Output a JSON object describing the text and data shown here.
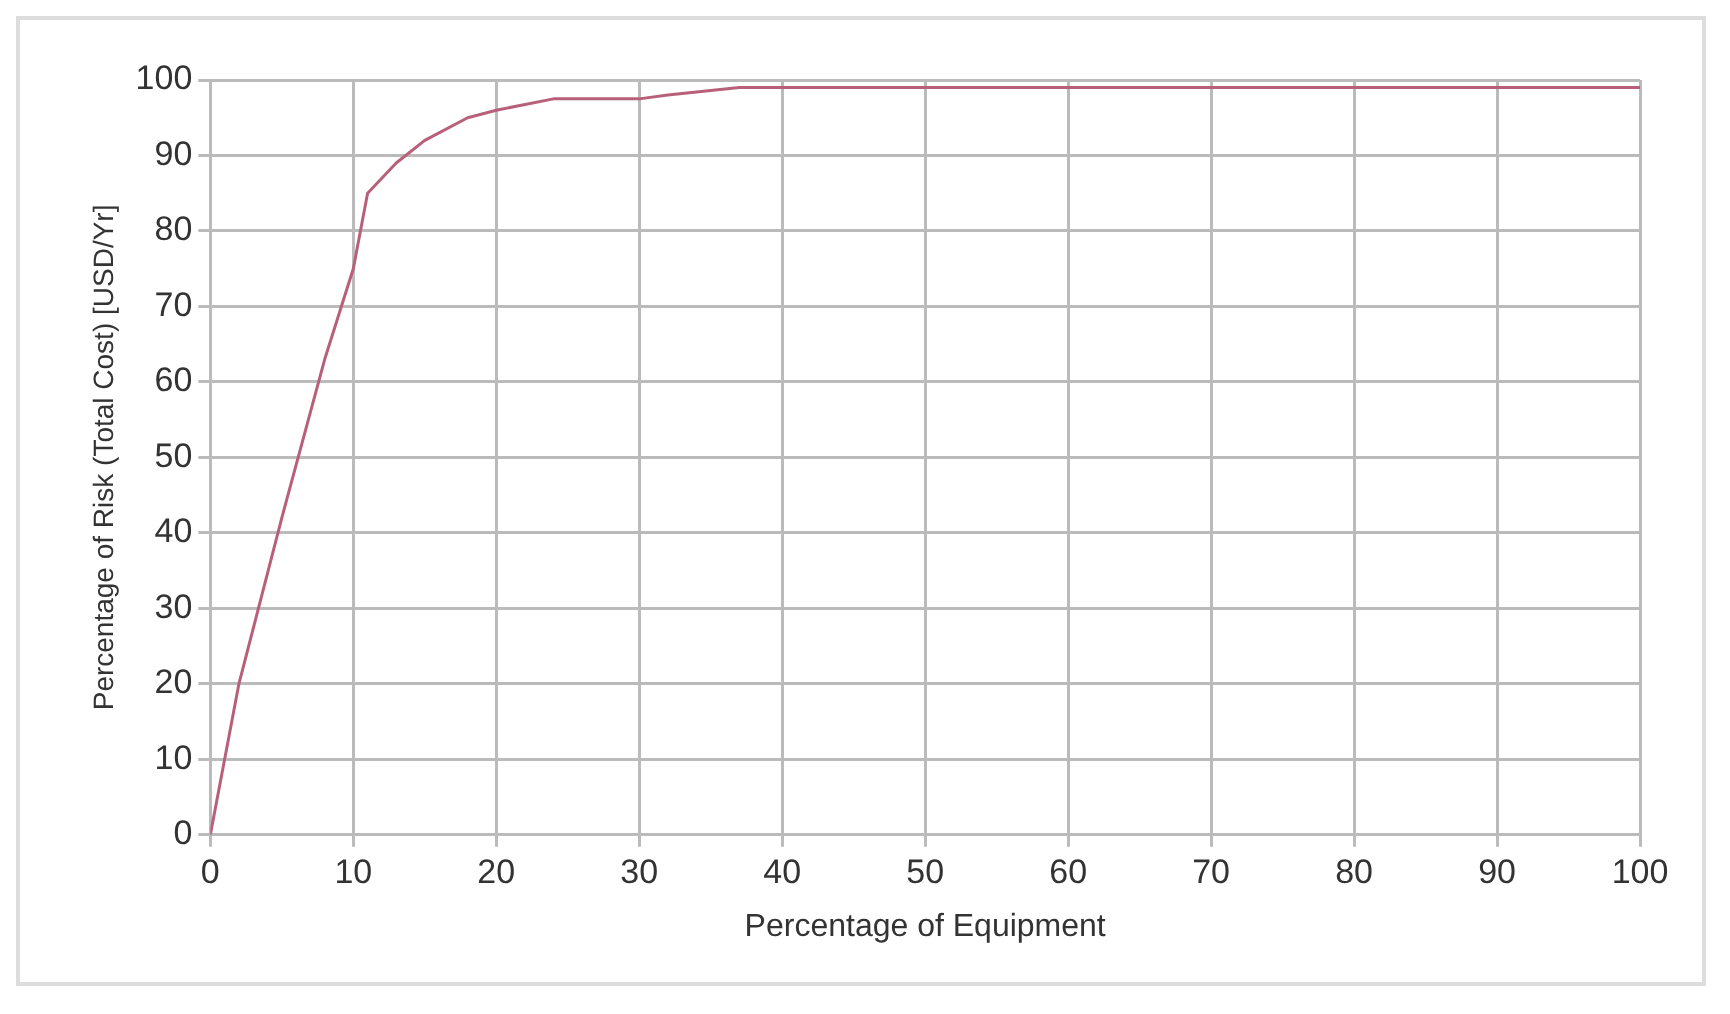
{
  "chart_data": {
    "type": "line",
    "xlabel": "Percentage of Equipment",
    "ylabel": "Percentage of Risk (Total Cost) [USD/Yr]",
    "series": [
      {
        "color": "#b8607a",
        "x": [
          0,
          2,
          5,
          8,
          10,
          11,
          13,
          15,
          18,
          20,
          24,
          30,
          32,
          37,
          50,
          100
        ],
        "values": [
          0,
          20,
          42,
          63,
          75,
          85,
          89,
          92,
          95,
          96,
          97.5,
          97.5,
          98,
          99,
          99,
          99
        ]
      }
    ],
    "xlim": [
      0,
      100
    ],
    "xticks": [
      0,
      10,
      20,
      30,
      40,
      50,
      60,
      70,
      80,
      90,
      100
    ],
    "ylim": [
      0,
      100
    ],
    "yticks": [
      0,
      10,
      20,
      30,
      40,
      50,
      60,
      70,
      80,
      90,
      100
    ],
    "grid": true,
    "marker": "none",
    "line_style": "solid",
    "legend": false
  }
}
